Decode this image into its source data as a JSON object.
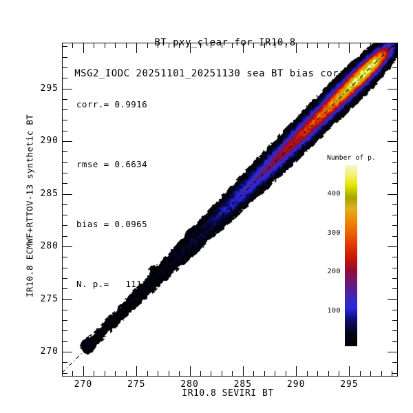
{
  "chart_data": {
    "type": "heatmap",
    "title": "BT pxy_clear for IR10.8",
    "subtitle": "MSG2_IODC 20251101_20251130 sea BT bias corrected",
    "xlabel": "IR10.8 SEVIRI BT",
    "ylabel": "IR10.8 ECMWF+RTTOV-13 synthetic BT",
    "xlim": [
      268.0,
      299.56
    ],
    "ylim": [
      267.65,
      299.35
    ],
    "xticks": [
      270,
      275,
      280,
      285,
      290,
      295
    ],
    "yticks": [
      270,
      275,
      280,
      285,
      290,
      295
    ],
    "minor_tick_step": 1,
    "major_tick_multiple": 5,
    "stats": {
      "corr": 0.9916,
      "rmse": 0.6634,
      "bias": 0.0965,
      "n_points": 111359
    },
    "stats_lines": [
      "corr.= 0.9916",
      "rmse = 0.6634",
      "bias = 0.0965",
      "N. p.=   111359"
    ],
    "identity_line": {
      "style": "dash-dot",
      "color": "#000000",
      "from": 266,
      "to": 301
    },
    "colorbar": {
      "title": "Number of p.",
      "ticks": [
        100,
        200,
        300,
        400
      ],
      "range": [
        10,
        474
      ],
      "stops": [
        {
          "t": 0.0,
          "c": "#000000"
        },
        {
          "t": 0.08,
          "c": "#05051e"
        },
        {
          "t": 0.15,
          "c": "#0d0d78"
        },
        {
          "t": 0.21,
          "c": "#2828dc"
        },
        {
          "t": 0.27,
          "c": "#3c28b4"
        },
        {
          "t": 0.32,
          "c": "#5a1e8c"
        },
        {
          "t": 0.37,
          "c": "#781464"
        },
        {
          "t": 0.42,
          "c": "#960a32"
        },
        {
          "t": 0.48,
          "c": "#c31405"
        },
        {
          "t": 0.55,
          "c": "#e13200"
        },
        {
          "t": 0.62,
          "c": "#e95f00"
        },
        {
          "t": 0.7,
          "c": "#ee8c00"
        },
        {
          "t": 0.76,
          "c": "#e3ae1e"
        },
        {
          "t": 0.82,
          "c": "#a5a500"
        },
        {
          "t": 0.89,
          "c": "#e6e600"
        },
        {
          "t": 0.95,
          "c": "#f2f27d"
        },
        {
          "t": 1.0,
          "c": "#f7f7be"
        }
      ]
    },
    "density_model": {
      "description": "2-D histogram of SEVIRI BT vs ECMWF+RTTOV-13 synthetic BT; counts concentrated along y=x, peaking near 296.5 K",
      "bin_size": 0.25,
      "threshold": 4.5,
      "ridge_offset": 0.1,
      "ridge_peak": [
        [
          269.95,
          0
        ],
        [
          270.15,
          16
        ],
        [
          270.5,
          30
        ],
        [
          270.95,
          14
        ],
        [
          272,
          13
        ],
        [
          274,
          16
        ],
        [
          276,
          20
        ],
        [
          278,
          28
        ],
        [
          280,
          42
        ],
        [
          282,
          62
        ],
        [
          284,
          95
        ],
        [
          286,
          135
        ],
        [
          288,
          185
        ],
        [
          290,
          240
        ],
        [
          291.5,
          275
        ],
        [
          293,
          320
        ],
        [
          294.5,
          390
        ],
        [
          295.7,
          450
        ],
        [
          296.6,
          474
        ],
        [
          297.4,
          440
        ],
        [
          298.1,
          330
        ],
        [
          298.7,
          190
        ],
        [
          299.3,
          70
        ],
        [
          299.6,
          40
        ]
      ],
      "band_sigma": [
        [
          269.9,
          0.5
        ],
        [
          274,
          0.55
        ],
        [
          280,
          0.63
        ],
        [
          286,
          0.72
        ],
        [
          292,
          0.76
        ],
        [
          296,
          0.75
        ],
        [
          299.6,
          0.6
        ]
      ],
      "outlier_spots": [
        {
          "x": 276.5,
          "y": 277.7,
          "p": 9,
          "s": 0.3
        },
        {
          "x": 280.1,
          "y": 281.2,
          "p": 8,
          "s": 0.28
        }
      ]
    }
  }
}
